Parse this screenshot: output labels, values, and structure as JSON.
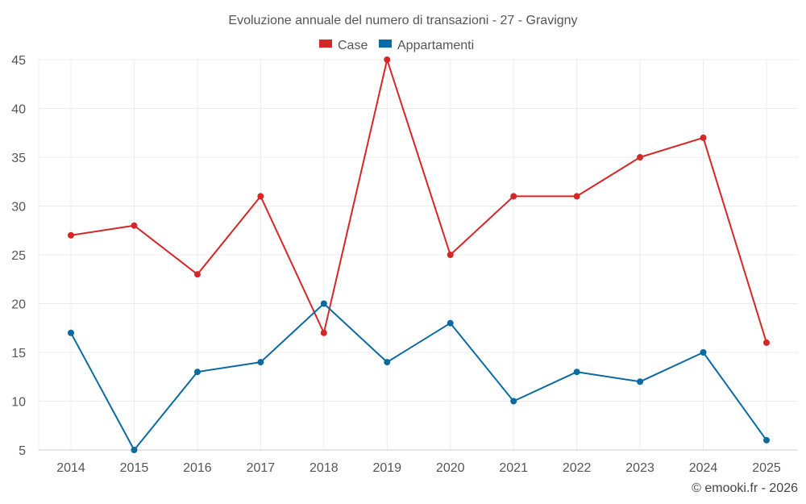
{
  "chart_data": {
    "type": "line",
    "title": "Evoluzione annuale del numero di transazioni - 27 - Gravigny",
    "categories": [
      "2014",
      "2015",
      "2016",
      "2017",
      "2018",
      "2019",
      "2020",
      "2021",
      "2022",
      "2023",
      "2024",
      "2025"
    ],
    "series": [
      {
        "name": "Case",
        "color": "#d62728",
        "values": [
          27,
          28,
          23,
          31,
          17,
          45,
          25,
          31,
          31,
          35,
          37,
          16
        ]
      },
      {
        "name": "Appartamenti",
        "color": "#0a6aa1",
        "values": [
          17,
          5,
          13,
          14,
          20,
          14,
          18,
          10,
          13,
          12,
          15,
          6
        ]
      }
    ],
    "ylim": [
      5,
      45
    ],
    "yticks": [
      5,
      10,
      15,
      20,
      25,
      30,
      35,
      40,
      45
    ],
    "xlabel": "",
    "ylabel": "",
    "grid": true,
    "legend": "top-center"
  },
  "credit": "© emooki.fr - 2026"
}
